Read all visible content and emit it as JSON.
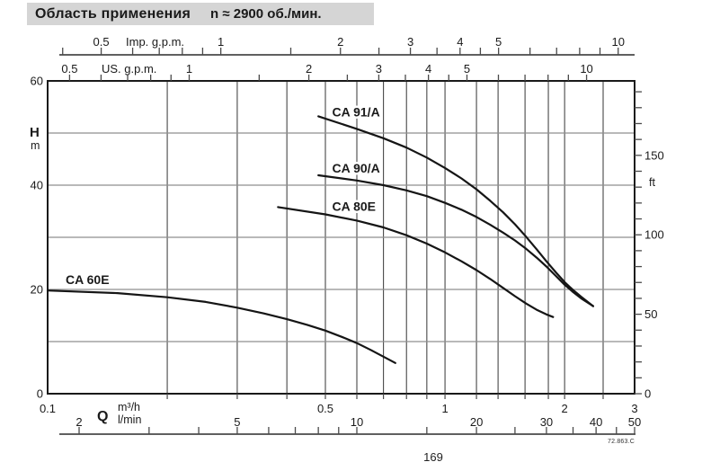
{
  "title": {
    "heading": "Область применения",
    "speed_note": "n ≈ 2900 об./мин."
  },
  "footer": {
    "page_number": "169",
    "drawing_ref": "72.863.C"
  },
  "chart_data": {
    "type": "line",
    "title": "Область применения n ≈ 2900 об./мин.",
    "x_scale": "log",
    "y_scale": "linear",
    "xlim_m3h": [
      0.1,
      3
    ],
    "ylim_m": [
      0,
      60
    ],
    "grid": {
      "vertical_q_m3h": [
        0.2,
        0.3,
        0.4,
        0.5,
        0.6,
        0.7,
        0.8,
        0.9,
        1.0,
        1.2,
        1.36,
        1.59,
        1.82,
        2.0,
        2.5
      ],
      "horizontal_h_m": [
        10,
        20,
        30,
        40,
        50
      ]
    },
    "axes": {
      "imp_gpm": {
        "title": "Imp. g.p.m.",
        "m3h_per_unit": 0.27277,
        "ticks": [
          0.4,
          0.5,
          0.6,
          0.7,
          0.8,
          0.9,
          1,
          1.5,
          2,
          2.5,
          3,
          3.5,
          4,
          4.5,
          5,
          6,
          7,
          8,
          9,
          10
        ],
        "labels": [
          {
            "v": 0.5,
            "t": "0.5"
          },
          {
            "v": 1,
            "t": "1"
          },
          {
            "v": 2,
            "t": "2"
          },
          {
            "v": 3,
            "t": "3"
          },
          {
            "v": 4,
            "t": "4"
          },
          {
            "v": 5,
            "t": "5"
          },
          {
            "v": 10,
            "t": "10"
          }
        ]
      },
      "us_gpm": {
        "title": "US. g.p.m.",
        "m3h_per_unit": 0.22712,
        "ticks": [
          0.5,
          0.6,
          0.7,
          0.8,
          0.9,
          1,
          1.5,
          2,
          2.5,
          3,
          3.5,
          4,
          4.5,
          5,
          6,
          7,
          8,
          9,
          10
        ],
        "labels": [
          {
            "v": 0.5,
            "t": "0.5"
          },
          {
            "v": 1,
            "t": "1"
          },
          {
            "v": 2,
            "t": "2"
          },
          {
            "v": 3,
            "t": "3"
          },
          {
            "v": 4,
            "t": "4"
          },
          {
            "v": 5,
            "t": "5"
          },
          {
            "v": 10,
            "t": "10"
          }
        ]
      },
      "head_m": {
        "title": "H",
        "unit": "m",
        "labels": [
          {
            "v": 0,
            "t": "0"
          },
          {
            "v": 20,
            "t": "20"
          },
          {
            "v": 40,
            "t": "40"
          },
          {
            "v": 60,
            "t": "60"
          }
        ]
      },
      "head_ft": {
        "unit": "ft",
        "m_per_unit": 0.3048,
        "tick_min": 0,
        "tick_max": 190,
        "tick_step": 10,
        "labels": [
          {
            "v": 0,
            "t": "0"
          },
          {
            "v": 50,
            "t": "50"
          },
          {
            "v": 100,
            "t": "100"
          },
          {
            "v": 150,
            "t": "150"
          }
        ]
      },
      "q_m3h": {
        "title": "Q",
        "unit": "m³/h",
        "labels": [
          {
            "v": 0.1,
            "t": "0.1"
          },
          {
            "v": 0.5,
            "t": "0.5"
          },
          {
            "v": 1,
            "t": "1"
          },
          {
            "v": 2,
            "t": "2"
          },
          {
            "v": 3,
            "t": "3"
          }
        ]
      },
      "q_lmin": {
        "unit": "l/min",
        "m3h_per_unit": 0.06,
        "ticks": [
          2,
          3,
          4,
          5,
          6,
          7,
          8,
          9,
          10,
          15,
          20,
          25,
          30,
          35,
          40,
          45,
          50
        ],
        "labels": [
          {
            "v": 2,
            "t": "2"
          },
          {
            "v": 5,
            "t": "5"
          },
          {
            "v": 10,
            "t": "10"
          },
          {
            "v": 20,
            "t": "20"
          },
          {
            "v": 30,
            "t": "30"
          },
          {
            "v": 40,
            "t": "40"
          },
          {
            "v": 50,
            "t": "50"
          }
        ]
      }
    },
    "series": [
      {
        "name": "CA 91/A",
        "label_at": [
          0.52,
          53.2
        ],
        "points": [
          [
            0.48,
            53.2
          ],
          [
            0.6,
            50.8
          ],
          [
            0.7,
            49.0
          ],
          [
            0.8,
            47.2
          ],
          [
            0.9,
            45.3
          ],
          [
            1.0,
            43.3
          ],
          [
            1.1,
            41.3
          ],
          [
            1.2,
            39.2
          ],
          [
            1.3,
            37.0
          ],
          [
            1.4,
            34.8
          ],
          [
            1.5,
            32.5
          ],
          [
            1.6,
            30.1
          ],
          [
            1.7,
            27.7
          ],
          [
            1.8,
            25.4
          ],
          [
            1.9,
            23.3
          ],
          [
            2.0,
            21.4
          ],
          [
            2.1,
            19.9
          ],
          [
            2.2,
            18.6
          ],
          [
            2.36,
            16.8
          ]
        ]
      },
      {
        "name": "CA 90/A",
        "label_at": [
          0.52,
          42.4
        ],
        "points": [
          [
            0.48,
            41.9
          ],
          [
            0.6,
            40.9
          ],
          [
            0.7,
            40.0
          ],
          [
            0.8,
            39.0
          ],
          [
            0.9,
            37.9
          ],
          [
            1.0,
            36.6
          ],
          [
            1.1,
            35.3
          ],
          [
            1.2,
            33.9
          ],
          [
            1.3,
            32.4
          ],
          [
            1.4,
            30.9
          ],
          [
            1.5,
            29.4
          ],
          [
            1.6,
            27.8
          ],
          [
            1.7,
            26.1
          ],
          [
            1.8,
            24.4
          ],
          [
            1.9,
            22.6
          ],
          [
            2.0,
            20.9
          ],
          [
            2.1,
            19.5
          ],
          [
            2.2,
            18.3
          ],
          [
            2.36,
            16.8
          ]
        ]
      },
      {
        "name": "CA 80E",
        "label_at": [
          0.52,
          35.1
        ],
        "points": [
          [
            0.38,
            35.8
          ],
          [
            0.5,
            34.4
          ],
          [
            0.6,
            33.2
          ],
          [
            0.7,
            31.9
          ],
          [
            0.8,
            30.4
          ],
          [
            0.9,
            28.8
          ],
          [
            1.0,
            27.1
          ],
          [
            1.1,
            25.4
          ],
          [
            1.2,
            23.7
          ],
          [
            1.3,
            22.0
          ],
          [
            1.4,
            20.3
          ],
          [
            1.5,
            18.7
          ],
          [
            1.6,
            17.3
          ],
          [
            1.7,
            16.1
          ],
          [
            1.8,
            15.2
          ],
          [
            1.87,
            14.7
          ]
        ]
      },
      {
        "name": "CA 60E",
        "label_at": [
          0.111,
          21.0
        ],
        "points": [
          [
            0.1,
            19.8
          ],
          [
            0.15,
            19.3
          ],
          [
            0.2,
            18.5
          ],
          [
            0.25,
            17.6
          ],
          [
            0.3,
            16.5
          ],
          [
            0.35,
            15.4
          ],
          [
            0.4,
            14.3
          ],
          [
            0.45,
            13.2
          ],
          [
            0.5,
            12.1
          ],
          [
            0.55,
            10.9
          ],
          [
            0.6,
            9.7
          ],
          [
            0.65,
            8.4
          ],
          [
            0.7,
            7.1
          ],
          [
            0.75,
            5.9
          ]
        ]
      }
    ]
  }
}
